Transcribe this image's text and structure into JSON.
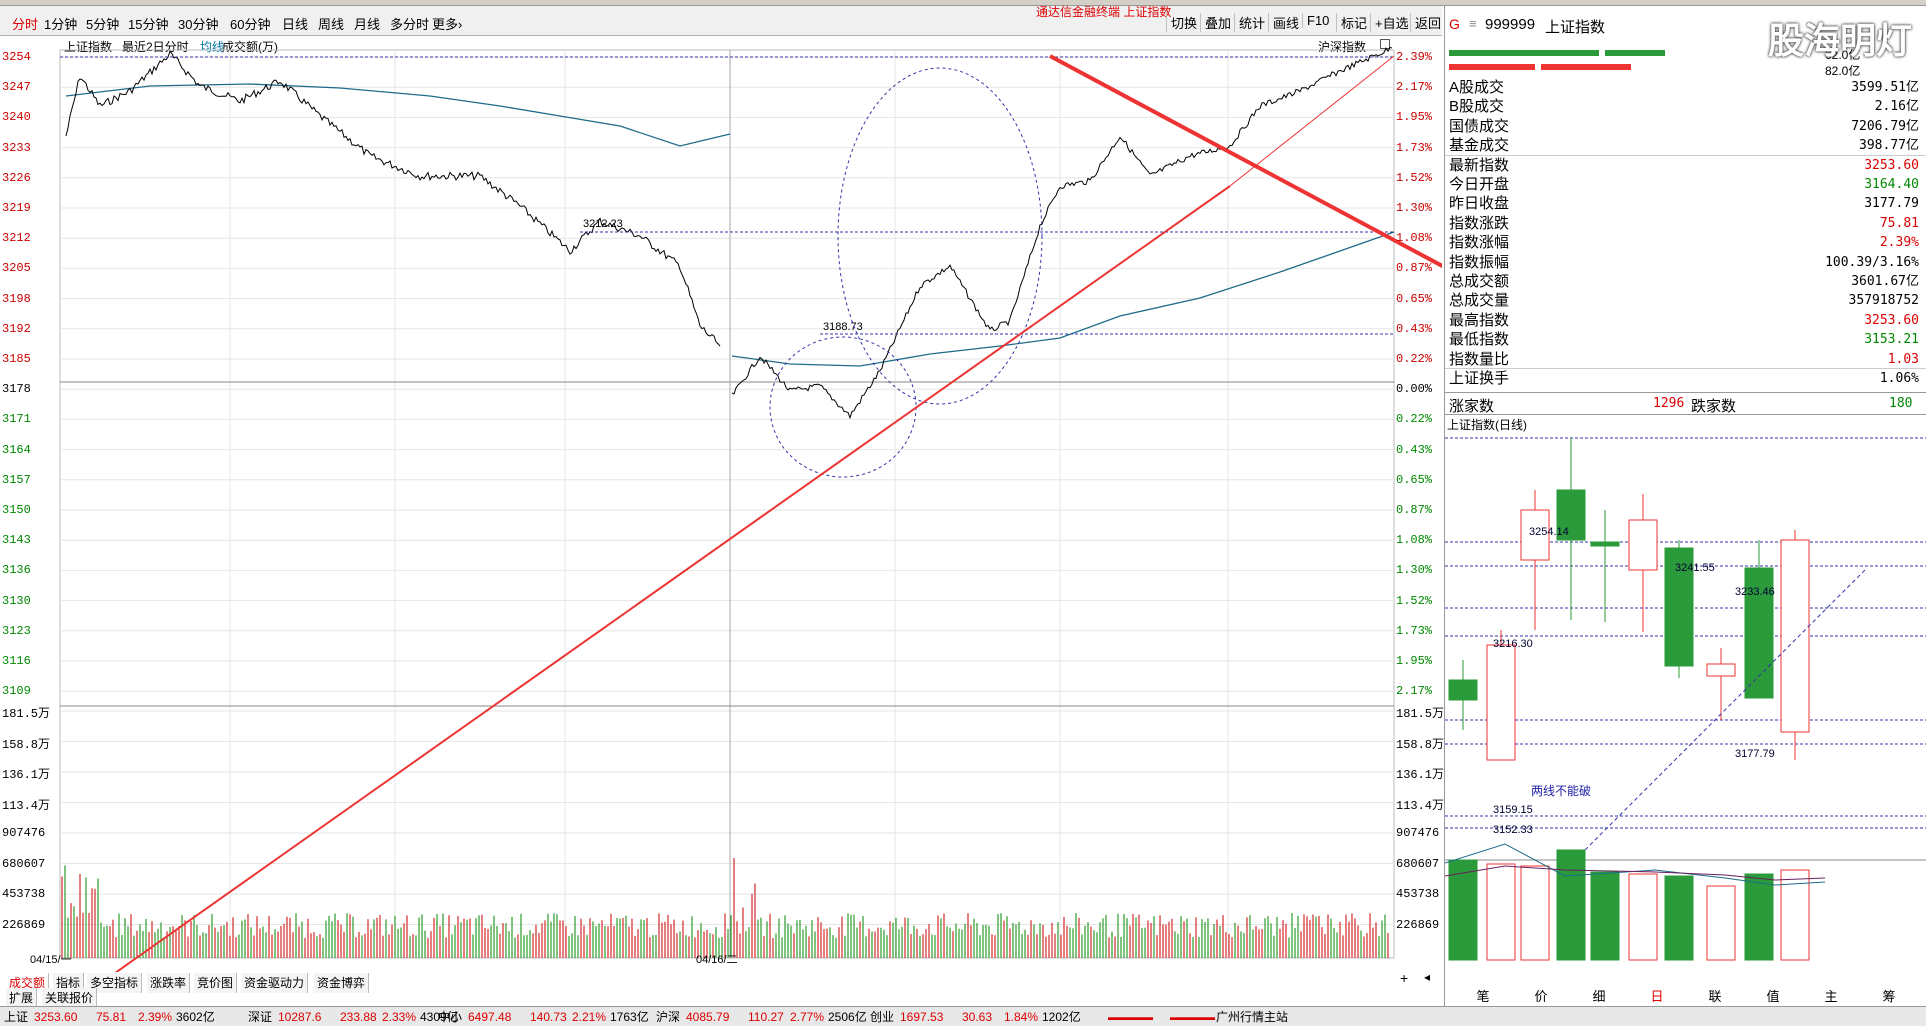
{
  "toolbar": {
    "periods": [
      "分时",
      "1分钟",
      "5分钟",
      "15分钟",
      "30分钟",
      "60分钟",
      "日线",
      "周线",
      "月线",
      "多分时",
      "更多›"
    ],
    "title": "通达信金融终端  上证指数",
    "right_buttons": [
      "切换",
      "叠加",
      "统计",
      "画线",
      "F10",
      "标记",
      "+自选",
      "返回"
    ]
  },
  "chart": {
    "header_name": "上证指数",
    "header_period": "最近2日分时",
    "header_avg": "均线",
    "header_vol": "成交额(万)",
    "header_right": "沪深指数",
    "date_left": "04/15/一",
    "date_mid": "04/16/二",
    "price_labels": [
      "3254",
      "3247",
      "3240",
      "3233",
      "3226",
      "3219",
      "3212",
      "3205",
      "3198",
      "3192",
      "3185",
      "3178",
      "3171",
      "3164",
      "3157",
      "3150",
      "3143",
      "3136",
      "3130",
      "3123",
      "3116",
      "3109"
    ],
    "pct_labels": [
      "2.39%",
      "2.17%",
      "1.95%",
      "1.73%",
      "1.52%",
      "1.30%",
      "1.08%",
      "0.87%",
      "0.65%",
      "0.43%",
      "0.22%",
      "0.00%",
      "0.22%",
      "0.43%",
      "0.65%",
      "0.87%",
      "1.08%",
      "1.30%",
      "1.52%",
      "1.73%",
      "1.95%",
      "2.17%"
    ],
    "vol_labels": [
      "181.5万",
      "158.8万",
      "136.1万",
      "113.4万",
      "907476",
      "680607",
      "453738",
      "226869"
    ],
    "annot_3212": "3212.23",
    "annot_3188": "3188.73"
  },
  "chart_data": {
    "type": "line",
    "title": "上证指数 最近2日分时",
    "series": [
      {
        "name": "上证指数",
        "x": [
          "04/15",
          "04/16"
        ],
        "y_open_day2": 3164.4,
        "y_close": 3253.6
      }
    ],
    "ylim": [
      3109,
      3254
    ],
    "prev_close": 3177.79
  },
  "tabs": [
    "成交额",
    "指标",
    "多空指标",
    "涨跌率",
    "竞价图",
    "资金驱动力",
    "资金博弈"
  ],
  "tabs2": [
    "扩展",
    "关联报价"
  ],
  "right": {
    "code": "999999",
    "name": "上证指数",
    "header_g": "G",
    "small1": "62.0亿",
    "small2": "82.0亿",
    "rows": [
      {
        "l": "A股成交",
        "v": "3599.51亿",
        "c": "#000"
      },
      {
        "l": "B股成交",
        "v": "2.16亿",
        "c": "#000"
      },
      {
        "l": "国债成交",
        "v": "7206.79亿",
        "c": "#000"
      },
      {
        "l": "基金成交",
        "v": "398.77亿",
        "c": "#000"
      },
      {
        "l": "最新指数",
        "v": "3253.60",
        "c": "#d00"
      },
      {
        "l": "今日开盘",
        "v": "3164.40",
        "c": "#080"
      },
      {
        "l": "昨日收盘",
        "v": "3177.79",
        "c": "#000"
      },
      {
        "l": "指数涨跌",
        "v": "75.81",
        "c": "#d00"
      },
      {
        "l": "指数涨幅",
        "v": "2.39%",
        "c": "#d00"
      },
      {
        "l": "指数振幅",
        "v": "100.39/3.16%",
        "c": "#000"
      },
      {
        "l": "总成交额",
        "v": "3601.67亿",
        "c": "#000"
      },
      {
        "l": "总成交量",
        "v": "357918752",
        "c": "#000"
      },
      {
        "l": "最高指数",
        "v": "3253.60",
        "c": "#d00"
      },
      {
        "l": "最低指数",
        "v": "3153.21",
        "c": "#080"
      },
      {
        "l": "指数量比",
        "v": "1.03",
        "c": "#d00"
      },
      {
        "l": "上证换手",
        "v": "1.06%",
        "c": "#000"
      }
    ],
    "up_label": "涨家数",
    "up_val": "1296",
    "down_label": "跌家数",
    "down_val": "180",
    "kline_title": "上证指数(日线)",
    "k_labels": [
      "3254.14",
      "3241.55",
      "3233.46",
      "3216.30",
      "3177.79",
      "3159.15",
      "3152.33"
    ],
    "k_note": "两线不能破",
    "bottom_tabs": [
      "笔",
      "价",
      "细",
      "日",
      "联",
      "值",
      "主",
      "筹"
    ]
  },
  "status": {
    "items": [
      {
        "n": "上证",
        "v": "3253.60",
        "d": "75.81",
        "p": "2.39%",
        "a": "3602亿"
      },
      {
        "n": "深证",
        "v": "10287.6",
        "d": "233.88",
        "p": "2.33%",
        "a": "4309亿"
      },
      {
        "n": "中小",
        "v": "6497.48",
        "d": "140.73",
        "p": "2.21%",
        "a": "1763亿"
      },
      {
        "n": "沪深",
        "v": "4085.79",
        "d": "110.27",
        "p": "2.77%",
        "a": "2506亿"
      },
      {
        "n": "创业",
        "v": "1697.53",
        "d": "30.63",
        "p": "1.84%",
        "a": "1202亿"
      }
    ],
    "station": "广州行情主站"
  },
  "watermark": "股海明灯"
}
